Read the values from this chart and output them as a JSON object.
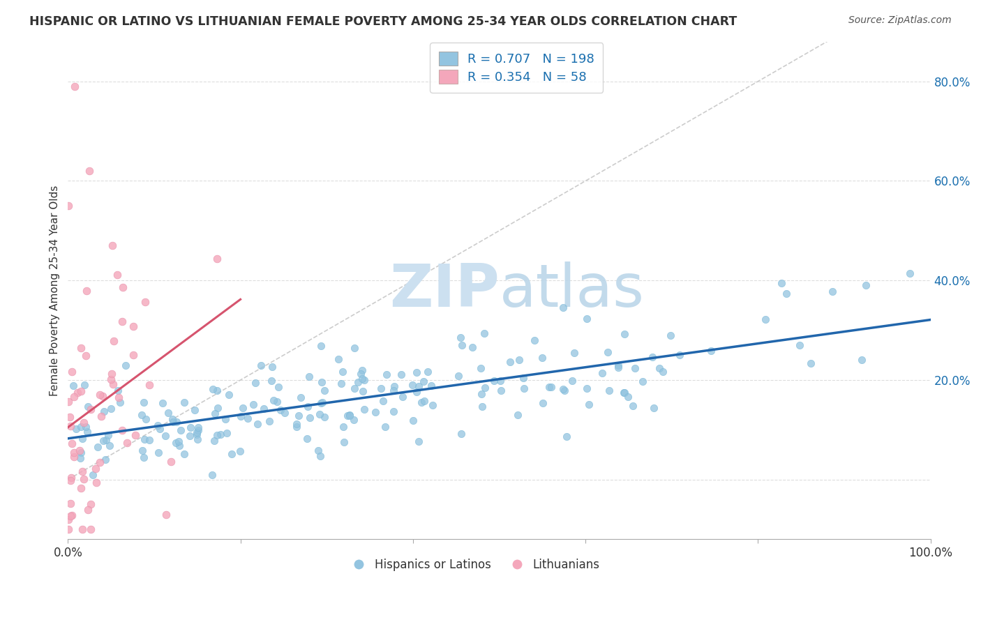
{
  "title": "HISPANIC OR LATINO VS LITHUANIAN FEMALE POVERTY AMONG 25-34 YEAR OLDS CORRELATION CHART",
  "source": "Source: ZipAtlas.com",
  "ylabel": "Female Poverty Among 25-34 Year Olds",
  "xlim": [
    0.0,
    1.0
  ],
  "ylim": [
    -0.12,
    0.88
  ],
  "xticks": [
    0.0,
    0.2,
    0.4,
    0.6,
    0.8,
    1.0
  ],
  "yticks": [
    0.0,
    0.2,
    0.4,
    0.6,
    0.8
  ],
  "ytick_labels": [
    "",
    "20.0%",
    "40.0%",
    "60.0%",
    "80.0%"
  ],
  "xtick_labels": [
    "0.0%",
    "",
    "",
    "",
    "",
    "100.0%"
  ],
  "legend1_R": "0.707",
  "legend1_N": "198",
  "legend2_R": "0.354",
  "legend2_N": "58",
  "legend1_label": "Hispanics or Latinos",
  "legend2_label": "Lithuanians",
  "blue_color": "#93c4e0",
  "pink_color": "#f4a7bb",
  "blue_line_color": "#2166ac",
  "pink_line_color": "#d6546e",
  "stat_color": "#1a6faf",
  "watermark_zip": "ZIP",
  "watermark_atlas": "atlas",
  "watermark_color": "#cce0f0",
  "background_color": "#ffffff",
  "N_blue": 198,
  "N_pink": 58,
  "R_blue": 0.707,
  "R_pink": 0.354
}
